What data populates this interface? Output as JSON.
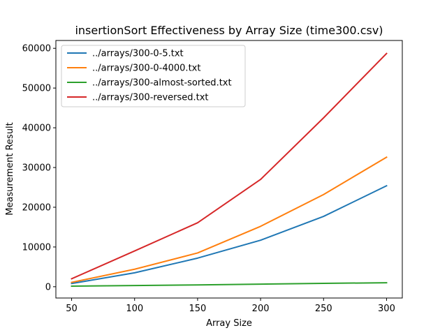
{
  "chart_data": {
    "type": "line",
    "title": "insertionSort Effectiveness by Array Size (time300.csv)",
    "xlabel": "Array Size",
    "ylabel": "Measurement Result",
    "x": [
      50,
      100,
      150,
      200,
      250,
      300
    ],
    "xticks": [
      50,
      100,
      150,
      200,
      250,
      300
    ],
    "yticks": [
      0,
      10000,
      20000,
      30000,
      40000,
      50000,
      60000
    ],
    "xlim": [
      37.5,
      312.5
    ],
    "ylim": [
      -2840,
      61970
    ],
    "grid": false,
    "legend_position": "top-left",
    "series": [
      {
        "name": "../arrays/300-0-5.txt",
        "color": "#1f77b4",
        "values": [
          800,
          3500,
          7200,
          11700,
          17700,
          25400
        ]
      },
      {
        "name": "../arrays/300-0-4000.txt",
        "color": "#ff7f0e",
        "values": [
          1100,
          4400,
          8500,
          15200,
          23200,
          32600
        ]
      },
      {
        "name": "../arrays/300-almost-sorted.txt",
        "color": "#2ca02c",
        "values": [
          150,
          300,
          450,
          650,
          850,
          1000
        ]
      },
      {
        "name": "../arrays/300-reversed.txt",
        "color": "#d62728",
        "values": [
          2000,
          9000,
          16100,
          27000,
          42500,
          58700
        ]
      }
    ]
  }
}
